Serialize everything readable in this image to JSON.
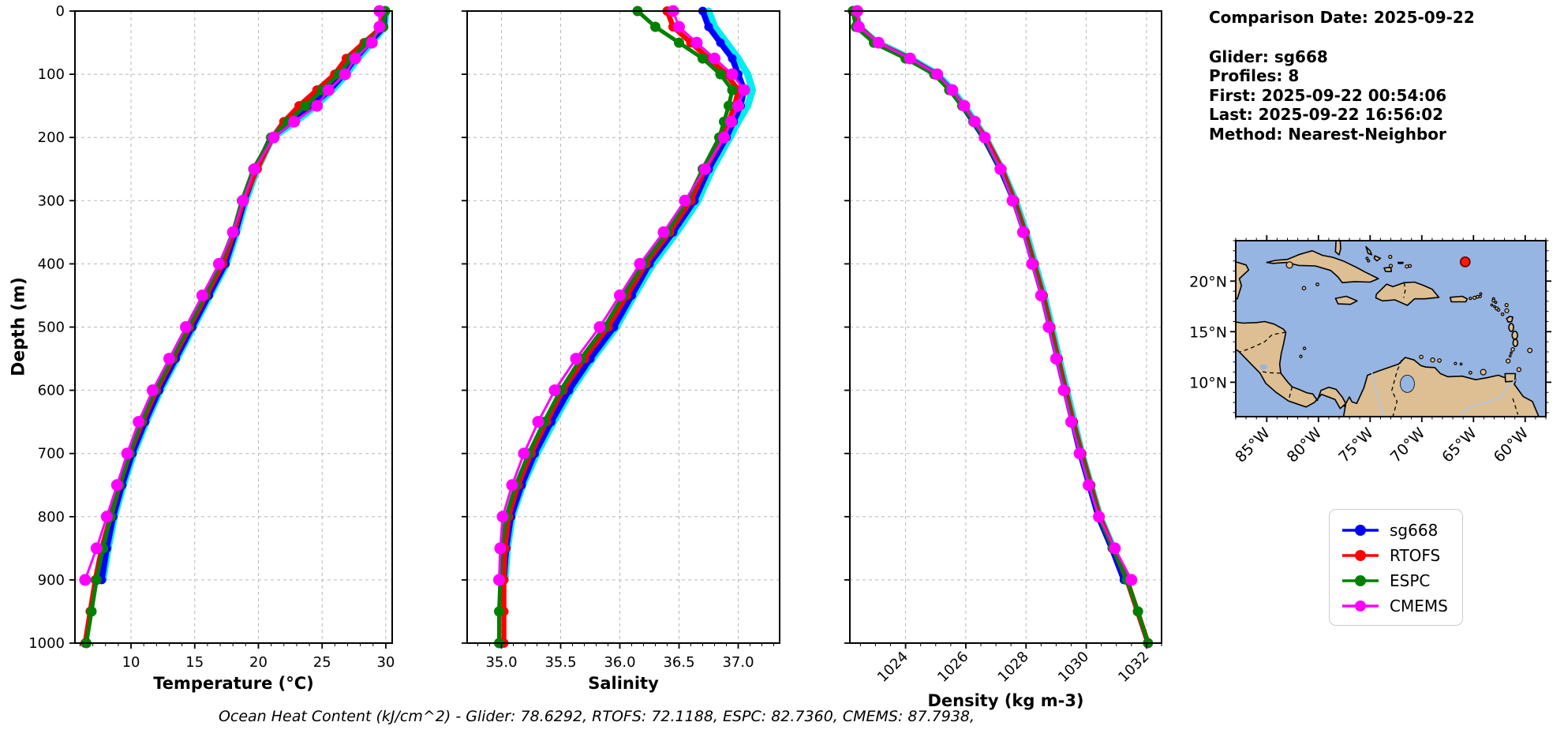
{
  "info_panel": {
    "comparison_date": "Comparison Date: 2025-09-22",
    "glider": "Glider: sg668",
    "profiles": "Profiles: 8",
    "first": "First: 2025-09-22 00:54:06",
    "last": "Last: 2025-09-22 16:56:02",
    "method": "Method: Nearest-Neighbor"
  },
  "caption": "Ocean Heat Content (kJ/cm^2) - Glider: 78.6292,  RTOFS: 72.1188,  ESPC: 82.7360,  CMEMS: 87.7938,",
  "axes": {
    "ylabel": "Depth (m)"
  },
  "legend": {
    "entries": [
      {
        "label": "sg668",
        "color": "#0000ff"
      },
      {
        "label": "RTOFS",
        "color": "#ff0000"
      },
      {
        "label": "ESPC",
        "color": "#008000"
      },
      {
        "label": "CMEMS",
        "color": "#ff00ff"
      }
    ]
  },
  "map": {
    "ocean_color": "#97b5e2",
    "land_color": "#ddbf93",
    "lon_range": [
      -88.0,
      -58.0
    ],
    "lat_range": [
      6.6,
      24.0
    ],
    "xtick_lons": [
      -85,
      -80,
      -75,
      -70,
      -65,
      -60
    ],
    "xticklabels": [
      "85°W",
      "80°W",
      "75°W",
      "70°W",
      "65°W",
      "60°W"
    ],
    "ytick_lats": [
      20,
      15,
      10
    ],
    "yticklabels": [
      "20°N",
      "15°N",
      "10°N"
    ],
    "marker": {
      "lon": -65.8,
      "lat": 21.9,
      "color": "#ff1a00",
      "edge": "#700000"
    }
  },
  "chart_data": [
    {
      "type": "line",
      "name": "temperature-profile",
      "xlabel": "Temperature (°C)",
      "ylabel": "Depth (m)",
      "xlim": [
        5.6,
        30.5
      ],
      "ylim": [
        0,
        1000
      ],
      "xticks": [
        10,
        15,
        20,
        25,
        30
      ],
      "xtick_labels": [
        "10",
        "15",
        "20",
        "25",
        "30"
      ],
      "minor_tick_step": 1,
      "yticks": [
        0,
        100,
        200,
        300,
        400,
        500,
        600,
        700,
        800,
        900,
        1000
      ],
      "ytick_labels": [
        "0",
        "100",
        "200",
        "300",
        "400",
        "500",
        "600",
        "700",
        "800",
        "900",
        "1000"
      ],
      "grid": true,
      "series": [
        {
          "name": "sg668-raw",
          "color": "#00eeee",
          "width": 9,
          "marker": 0,
          "depths": [
            0,
            25,
            50,
            75,
            100,
            125,
            150,
            175,
            200,
            250,
            300,
            350,
            400,
            450,
            500,
            550,
            600,
            650,
            700,
            750,
            800,
            850,
            900
          ],
          "values": [
            30.0,
            29.9,
            28.9,
            27.8,
            26.9,
            25.8,
            24.5,
            22.9,
            21.1,
            19.9,
            19.0,
            18.3,
            17.5,
            16.2,
            14.9,
            13.6,
            12.3,
            11.2,
            10.2,
            9.4,
            8.7,
            8.2,
            7.8
          ]
        },
        {
          "name": "sg668",
          "color": "#0000ff",
          "width": 7.5,
          "marker": 5.5,
          "depths": [
            0,
            25,
            50,
            75,
            100,
            125,
            150,
            175,
            200,
            250,
            300,
            350,
            400,
            450,
            500,
            550,
            600,
            650,
            700,
            750,
            800,
            850,
            900
          ],
          "values": [
            29.9,
            29.85,
            28.7,
            27.6,
            26.7,
            25.6,
            24.2,
            22.6,
            21.0,
            19.8,
            18.9,
            18.2,
            17.4,
            16.1,
            14.8,
            13.5,
            12.2,
            11.1,
            10.1,
            9.3,
            8.6,
            8.1,
            7.7
          ]
        },
        {
          "name": "RTOFS",
          "color": "#ff0000",
          "width": 6.5,
          "marker": 6,
          "depths": [
            0,
            25,
            50,
            75,
            100,
            125,
            150,
            175,
            200,
            250,
            300,
            350,
            400,
            450,
            500,
            550,
            600,
            650,
            700,
            750,
            800,
            850,
            900,
            950,
            1000
          ],
          "values": [
            29.9,
            29.7,
            28.3,
            26.9,
            26.0,
            24.6,
            23.2,
            22.0,
            21.1,
            19.9,
            18.8,
            18.1,
            17.2,
            15.9,
            14.6,
            13.3,
            12.0,
            10.9,
            9.9,
            9.1,
            8.4,
            7.7,
            7.2,
            6.8,
            6.4
          ]
        },
        {
          "name": "ESPC",
          "color": "#008000",
          "width": 5,
          "marker": 6.5,
          "depths": [
            0,
            25,
            50,
            75,
            100,
            125,
            150,
            175,
            200,
            250,
            300,
            350,
            400,
            450,
            500,
            550,
            600,
            650,
            700,
            750,
            800,
            850,
            900,
            950,
            1000
          ],
          "values": [
            29.95,
            29.8,
            28.5,
            27.3,
            26.3,
            25.0,
            23.7,
            22.3,
            21.0,
            19.6,
            18.7,
            18.0,
            17.0,
            15.8,
            14.5,
            13.2,
            11.9,
            10.8,
            9.9,
            9.1,
            8.4,
            7.8,
            7.3,
            6.9,
            6.5
          ]
        },
        {
          "name": "CMEMS",
          "color": "#ff00ff",
          "width": 3,
          "marker": 7.5,
          "depths": [
            0,
            25,
            50,
            75,
            100,
            125,
            150,
            175,
            200,
            250,
            300,
            350,
            400,
            450,
            500,
            550,
            600,
            650,
            700,
            750,
            800,
            850,
            900
          ],
          "values": [
            29.5,
            29.5,
            28.9,
            27.6,
            26.8,
            25.5,
            24.6,
            22.8,
            21.2,
            19.7,
            18.8,
            18.0,
            16.9,
            15.6,
            14.3,
            13.0,
            11.7,
            10.6,
            9.7,
            8.9,
            8.1,
            7.3,
            6.4
          ]
        }
      ]
    },
    {
      "type": "line",
      "name": "salinity-profile",
      "xlabel": "Salinity",
      "ylabel": "Depth (m)",
      "xlim": [
        34.71,
        37.35
      ],
      "ylim": [
        0,
        1000
      ],
      "xticks": [
        35.0,
        35.5,
        36.0,
        36.5,
        37.0
      ],
      "xtick_labels": [
        "35.0",
        "35.5",
        "36.0",
        "36.5",
        "37.0"
      ],
      "minor_tick_step": 0.1,
      "yticks": [
        0,
        100,
        200,
        300,
        400,
        500,
        600,
        700,
        800,
        900,
        1000
      ],
      "ytick_labels": [
        "0",
        "100",
        "200",
        "300",
        "400",
        "500",
        "600",
        "700",
        "800",
        "900",
        "1000"
      ],
      "grid": true,
      "series": [
        {
          "name": "sg668-raw",
          "color": "#00eeee",
          "width": 9,
          "marker": 0,
          "depths": [
            0,
            25,
            50,
            75,
            100,
            125,
            150,
            175,
            200,
            250,
            300,
            350,
            400,
            450,
            500,
            550,
            600,
            650,
            700,
            750,
            800,
            850,
            900
          ],
          "values": [
            36.75,
            36.8,
            36.9,
            37.0,
            37.08,
            37.12,
            37.08,
            37.0,
            36.93,
            36.78,
            36.66,
            36.48,
            36.28,
            36.12,
            35.97,
            35.77,
            35.59,
            35.44,
            35.3,
            35.18,
            35.09,
            35.05,
            35.03
          ]
        },
        {
          "name": "sg668",
          "color": "#0000ff",
          "width": 7.5,
          "marker": 5.5,
          "depths": [
            0,
            25,
            50,
            75,
            100,
            125,
            150,
            175,
            200,
            250,
            300,
            350,
            400,
            450,
            500,
            550,
            600,
            650,
            700,
            750,
            800,
            850,
            900
          ],
          "values": [
            36.7,
            36.75,
            36.85,
            36.95,
            37.0,
            37.05,
            37.02,
            36.96,
            36.9,
            36.75,
            36.63,
            36.45,
            36.25,
            36.1,
            35.95,
            35.75,
            35.57,
            35.42,
            35.28,
            35.17,
            35.08,
            35.04,
            35.02
          ]
        },
        {
          "name": "RTOFS",
          "color": "#ff0000",
          "width": 6.5,
          "marker": 6,
          "depths": [
            0,
            25,
            50,
            75,
            100,
            125,
            150,
            175,
            200,
            250,
            300,
            350,
            400,
            450,
            500,
            550,
            600,
            650,
            700,
            750,
            800,
            850,
            900,
            950,
            1000
          ],
          "values": [
            36.4,
            36.45,
            36.6,
            36.75,
            36.9,
            37.0,
            36.97,
            36.92,
            36.87,
            36.72,
            36.6,
            36.42,
            36.22,
            36.06,
            35.9,
            35.7,
            35.52,
            35.38,
            35.25,
            35.14,
            35.06,
            35.03,
            35.02,
            35.02,
            35.02
          ]
        },
        {
          "name": "ESPC",
          "color": "#008000",
          "width": 5,
          "marker": 6.5,
          "depths": [
            0,
            25,
            50,
            75,
            100,
            125,
            150,
            175,
            200,
            250,
            300,
            350,
            400,
            450,
            500,
            550,
            600,
            650,
            700,
            750,
            800,
            850,
            900,
            950,
            1000
          ],
          "values": [
            36.15,
            36.3,
            36.5,
            36.7,
            36.85,
            36.95,
            36.92,
            36.88,
            36.84,
            36.7,
            36.57,
            36.4,
            36.2,
            36.03,
            35.87,
            35.67,
            35.5,
            35.36,
            35.23,
            35.12,
            35.04,
            35.0,
            34.99,
            34.98,
            34.98
          ]
        },
        {
          "name": "CMEMS",
          "color": "#ff00ff",
          "width": 3,
          "marker": 7.5,
          "depths": [
            0,
            25,
            50,
            75,
            100,
            125,
            150,
            175,
            200,
            250,
            300,
            350,
            400,
            450,
            500,
            550,
            600,
            650,
            700,
            750,
            800,
            850,
            900
          ],
          "values": [
            36.45,
            36.5,
            36.65,
            36.8,
            36.95,
            37.05,
            37.0,
            36.94,
            36.88,
            36.72,
            36.55,
            36.37,
            36.17,
            36.0,
            35.83,
            35.63,
            35.45,
            35.31,
            35.19,
            35.09,
            35.01,
            34.99,
            34.98
          ]
        }
      ]
    },
    {
      "type": "line",
      "name": "density-profile",
      "xlabel": "Density (kg m-3)",
      "ylabel": "Depth (m)",
      "xlim": [
        1022.15,
        1032.5
      ],
      "ylim": [
        0,
        1000
      ],
      "xticks": [
        1024,
        1026,
        1028,
        1030,
        1032
      ],
      "xtick_labels": [
        "1024",
        "1026",
        "1028",
        "1030",
        "1032"
      ],
      "minor_tick_step": 0.5,
      "yticks": [
        0,
        100,
        200,
        300,
        400,
        500,
        600,
        700,
        800,
        900,
        1000
      ],
      "ytick_labels": [
        "0",
        "100",
        "200",
        "300",
        "400",
        "500",
        "600",
        "700",
        "800",
        "900",
        "1000"
      ],
      "grid": true,
      "rotated_xticklabels": 45,
      "series": [
        {
          "name": "sg668-raw",
          "color": "#00eeee",
          "width": 9,
          "marker": 0,
          "depths": [
            0,
            25,
            50,
            75,
            100,
            125,
            150,
            175,
            200,
            250,
            300,
            350,
            400,
            450,
            500,
            550,
            600,
            650,
            700,
            750,
            800,
            850,
            900
          ],
          "values": [
            1022.35,
            1022.45,
            1023.05,
            1024.15,
            1025.05,
            1025.55,
            1025.95,
            1026.3,
            1026.65,
            1027.2,
            1027.65,
            1028.0,
            1028.3,
            1028.6,
            1028.85,
            1029.1,
            1029.35,
            1029.6,
            1029.85,
            1030.15,
            1030.45,
            1030.9,
            1031.3
          ]
        },
        {
          "name": "sg668",
          "color": "#0000ff",
          "width": 7.5,
          "marker": 5.5,
          "depths": [
            0,
            25,
            50,
            75,
            100,
            125,
            150,
            175,
            200,
            250,
            300,
            350,
            400,
            450,
            500,
            550,
            600,
            650,
            700,
            750,
            800,
            850,
            900
          ],
          "values": [
            1022.3,
            1022.4,
            1023.0,
            1024.1,
            1025.0,
            1025.5,
            1025.9,
            1026.25,
            1026.6,
            1027.15,
            1027.6,
            1027.95,
            1028.25,
            1028.55,
            1028.8,
            1029.05,
            1029.3,
            1029.55,
            1029.8,
            1030.1,
            1030.4,
            1030.85,
            1031.25
          ]
        },
        {
          "name": "RTOFS",
          "color": "#ff0000",
          "width": 6.5,
          "marker": 6,
          "depths": [
            0,
            25,
            50,
            75,
            100,
            125,
            150,
            175,
            200,
            250,
            300,
            350,
            400,
            450,
            500,
            550,
            600,
            650,
            700,
            750,
            800,
            850,
            900,
            950,
            1000
          ],
          "values": [
            1022.35,
            1022.45,
            1023.05,
            1024.1,
            1025.0,
            1025.5,
            1025.92,
            1026.28,
            1026.65,
            1027.2,
            1027.62,
            1027.97,
            1028.27,
            1028.57,
            1028.82,
            1029.07,
            1029.32,
            1029.57,
            1029.85,
            1030.15,
            1030.45,
            1030.9,
            1031.35,
            1031.7,
            1032.05
          ]
        },
        {
          "name": "ESPC",
          "color": "#008000",
          "width": 5,
          "marker": 6.5,
          "depths": [
            0,
            25,
            50,
            75,
            100,
            125,
            150,
            175,
            200,
            250,
            300,
            350,
            400,
            450,
            500,
            550,
            600,
            650,
            700,
            750,
            800,
            850,
            900,
            950,
            1000
          ],
          "values": [
            1022.25,
            1022.35,
            1022.95,
            1024.0,
            1024.95,
            1025.45,
            1025.88,
            1026.25,
            1026.6,
            1027.15,
            1027.58,
            1027.93,
            1028.23,
            1028.53,
            1028.78,
            1029.03,
            1029.28,
            1029.53,
            1029.82,
            1030.12,
            1030.42,
            1030.88,
            1031.35,
            1031.72,
            1032.05
          ]
        },
        {
          "name": "CMEMS",
          "color": "#ff00ff",
          "width": 3,
          "marker": 7.5,
          "depths": [
            0,
            25,
            50,
            75,
            100,
            125,
            150,
            175,
            200,
            250,
            300,
            350,
            400,
            450,
            500,
            550,
            600,
            650,
            700,
            750,
            800,
            850,
            900
          ],
          "values": [
            1022.4,
            1022.45,
            1023.1,
            1024.15,
            1025.05,
            1025.55,
            1025.95,
            1026.3,
            1026.63,
            1027.15,
            1027.55,
            1027.9,
            1028.2,
            1028.5,
            1028.75,
            1029.0,
            1029.25,
            1029.5,
            1029.78,
            1030.08,
            1030.42,
            1030.95,
            1031.5
          ]
        }
      ]
    }
  ]
}
